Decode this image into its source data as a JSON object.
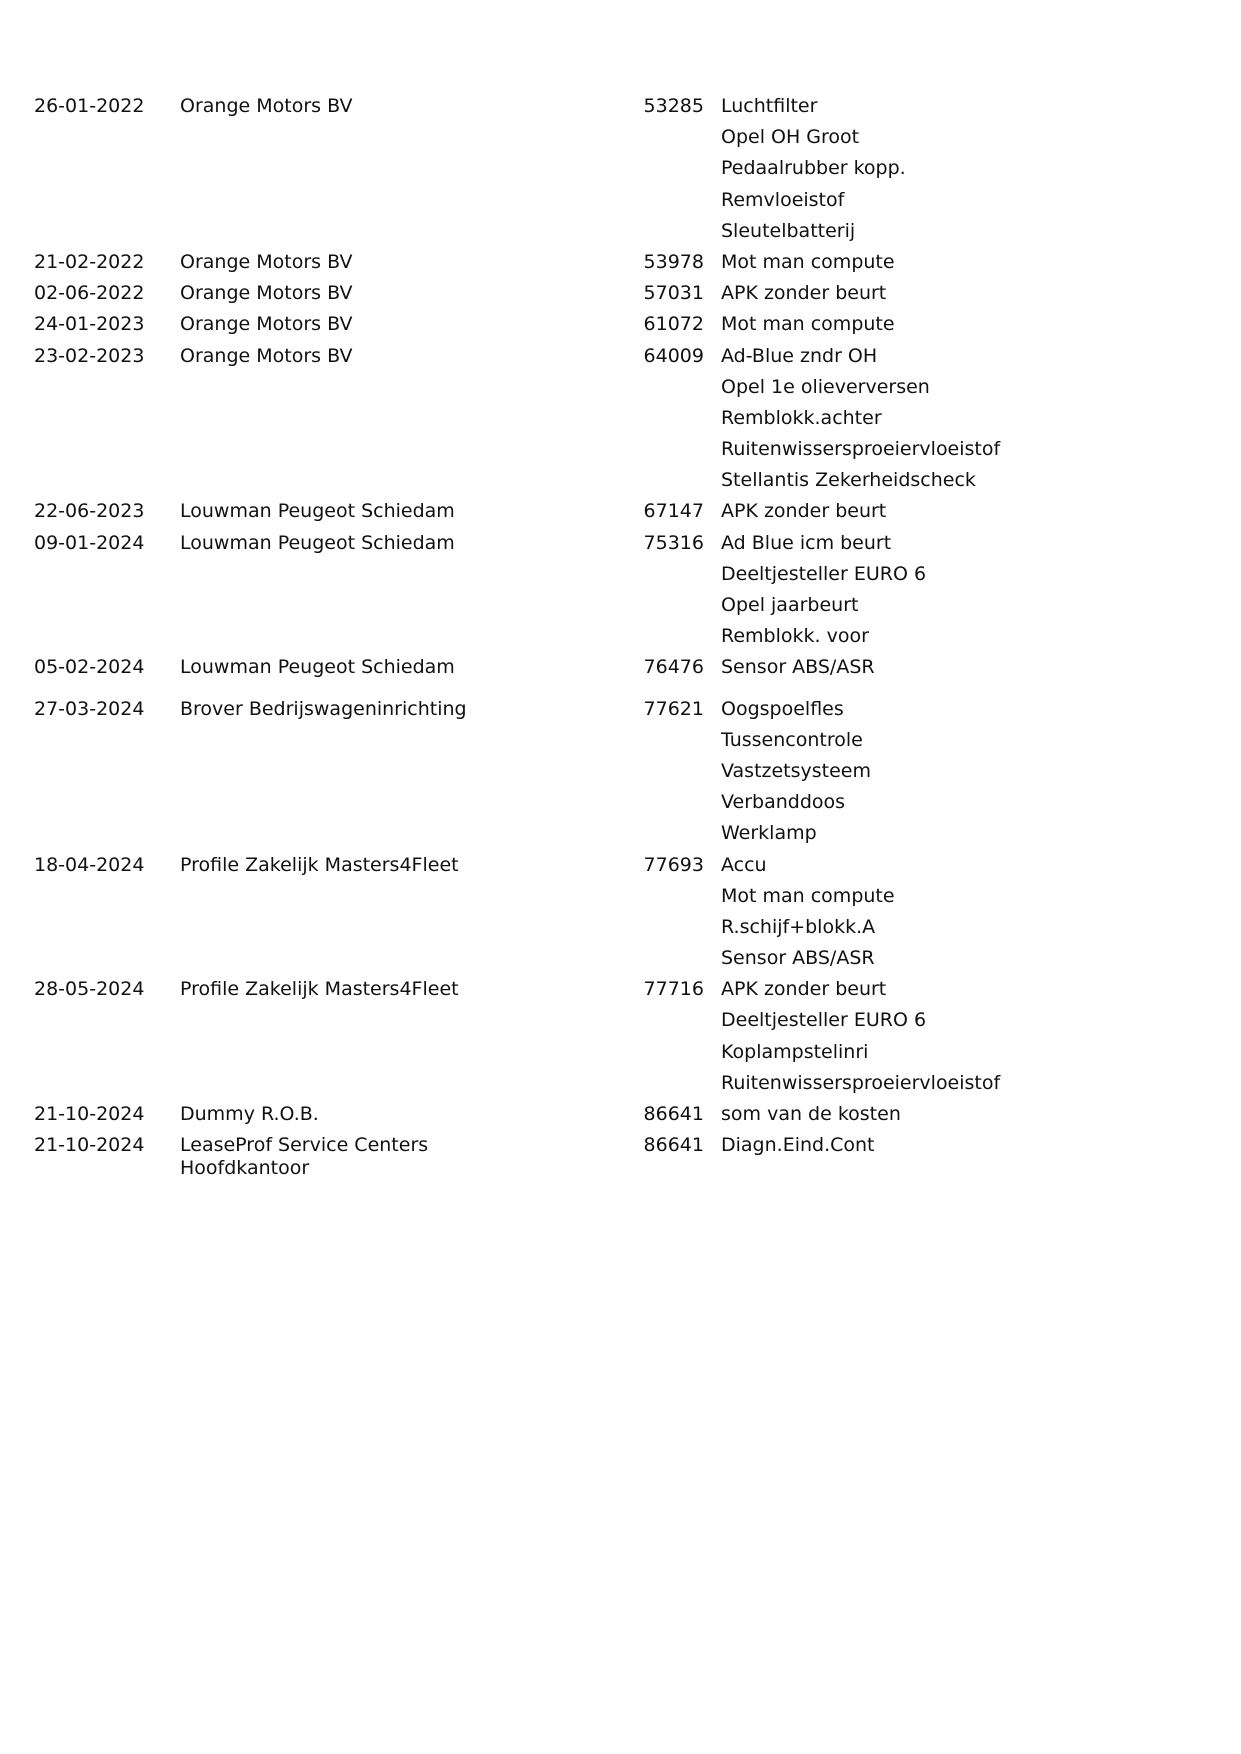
{
  "entries": [
    {
      "date": "26-01-2022",
      "company": "Orange Motors BV",
      "km": "53285",
      "items": [
        "Luchtfilter",
        "Opel OH Groot",
        "Pedaalrubber kopp.",
        "Remvloeistof",
        "Sleutelbatterij"
      ]
    },
    {
      "date": "21-02-2022",
      "company": "Orange Motors BV",
      "km": "53978",
      "items": [
        "Mot man compute"
      ]
    },
    {
      "date": "02-06-2022",
      "company": "Orange Motors BV",
      "km": "57031",
      "items": [
        "APK zonder beurt"
      ]
    },
    {
      "date": "24-01-2023",
      "company": "Orange Motors BV",
      "km": "61072",
      "items": [
        "Mot man compute"
      ]
    },
    {
      "date": "23-02-2023",
      "company": "Orange Motors BV",
      "km": "64009",
      "items": [
        "Ad-Blue zndr OH",
        "Opel 1e olieverversen",
        "Remblokk.achter",
        "Ruitenwissersproeiervloeistof",
        "Stellantis Zekerheidscheck"
      ]
    },
    {
      "date": "22-06-2023",
      "company": "Louwman Peugeot Schiedam",
      "km": "67147",
      "items": [
        "APK zonder beurt"
      ]
    },
    {
      "date": "09-01-2024",
      "company": "Louwman Peugeot Schiedam",
      "km": "75316",
      "items": [
        "Ad Blue icm beurt",
        "Deeltjesteller EURO 6",
        "Opel jaarbeurt",
        "Remblokk. voor"
      ]
    },
    {
      "date": "05-02-2024",
      "company": "Louwman Peugeot Schiedam",
      "km": "76476",
      "items": [
        "Sensor ABS/ASR"
      ]
    },
    {
      "date": "27-03-2024",
      "company": "Brover Bedrijswageninrichting",
      "km": "77621",
      "items": [
        "Oogspoelfles",
        "Tussencontrole",
        "Vastzetsysteem",
        "Verbanddoos",
        "Werklamp"
      ]
    },
    {
      "date": "18-04-2024",
      "company": "Profile Zakelijk Masters4Fleet",
      "km": "77693",
      "items": [
        "Accu",
        "Mot man compute",
        "R.schijf+blokk.A",
        "Sensor ABS/ASR"
      ]
    },
    {
      "date": "28-05-2024",
      "company": "Profile Zakelijk Masters4Fleet",
      "km": "77716",
      "items": [
        "APK zonder beurt",
        "Deeltjesteller EURO 6",
        "Koplampstelinri",
        "Ruitenwissersproeiervloeistof"
      ]
    },
    {
      "date": "21-10-2024",
      "company": "Dummy R.O.B.",
      "km": "86641",
      "items": [
        "som van de kosten"
      ]
    },
    {
      "date": "21-10-2024",
      "company": "LeaseProf Service Centers Hoofdkantoor",
      "km": "86641",
      "items": [
        "Diagn.Eind.Cont"
      ]
    }
  ]
}
